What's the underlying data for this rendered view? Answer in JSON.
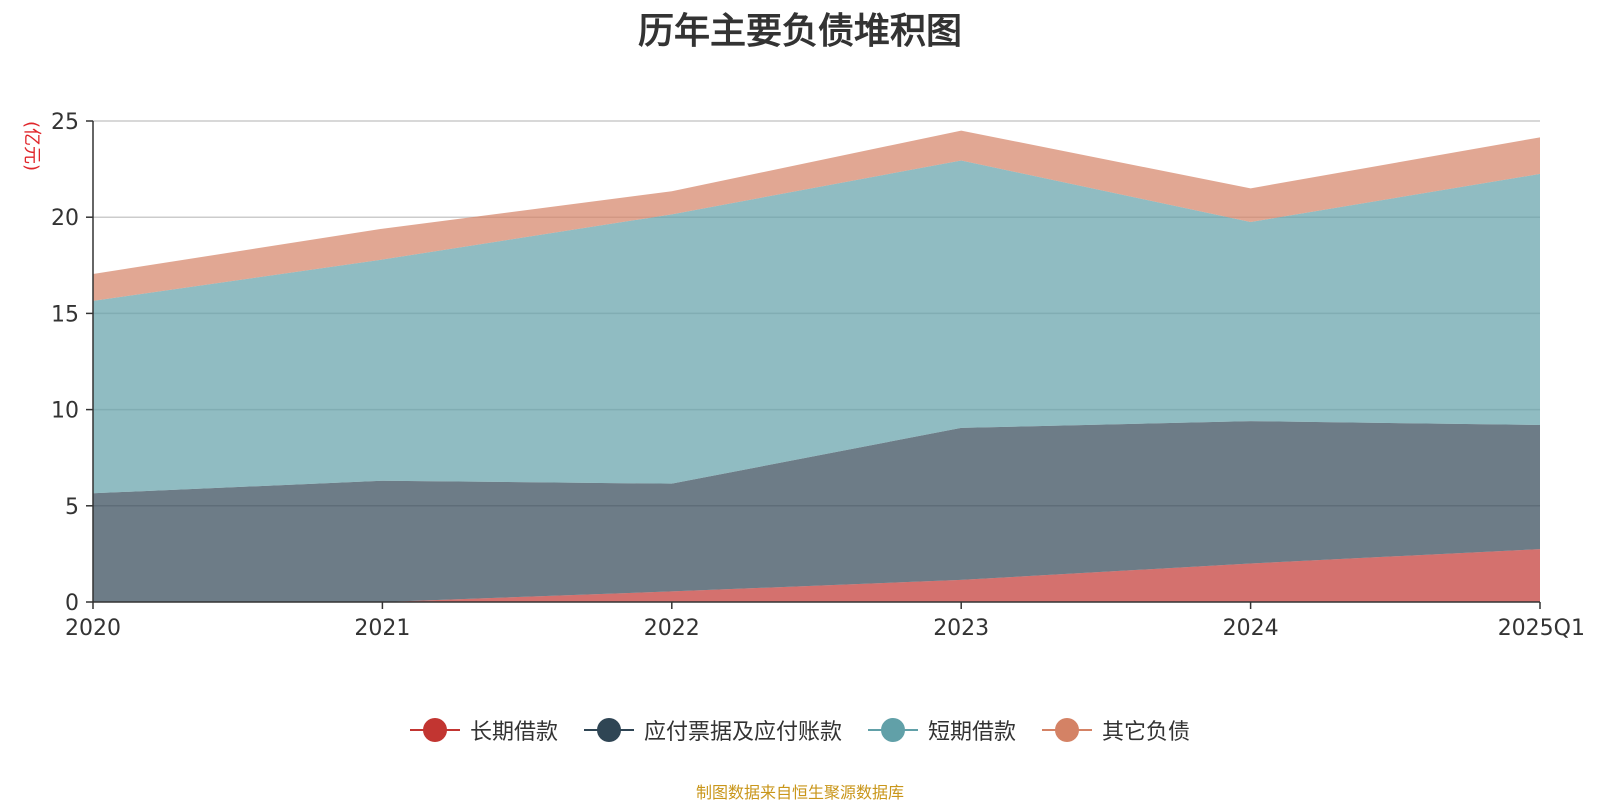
{
  "chart_data": {
    "type": "area",
    "stacked": true,
    "title": "历年主要负债堆积图",
    "ylabel": "(亿元)",
    "categories": [
      "2020",
      "2021",
      "2022",
      "2023",
      "2024",
      "2025Q1"
    ],
    "ylim": [
      0,
      25
    ],
    "yticks": [
      0,
      5,
      10,
      15,
      20,
      25
    ],
    "grid": true,
    "legend_position": "bottom",
    "series": [
      {
        "name": "长期借款",
        "values": [
          0,
          0,
          0.55,
          1.15,
          2.0,
          2.75
        ],
        "color": "#c23531"
      },
      {
        "name": "应付票据及应付账款",
        "values": [
          5.65,
          6.3,
          5.6,
          7.9,
          7.4,
          6.45
        ],
        "color": "#2f4554"
      },
      {
        "name": "短期借款",
        "values": [
          10.0,
          11.5,
          14.0,
          13.9,
          10.35,
          13.05
        ],
        "color": "#61a0a8"
      },
      {
        "name": "其它负债",
        "values": [
          1.4,
          1.6,
          1.2,
          1.55,
          1.75,
          1.9
        ],
        "color": "#d48265"
      }
    ]
  },
  "source_note": {
    "text": "制图数据来自恒生聚源数据库",
    "color": "#c9961a"
  }
}
